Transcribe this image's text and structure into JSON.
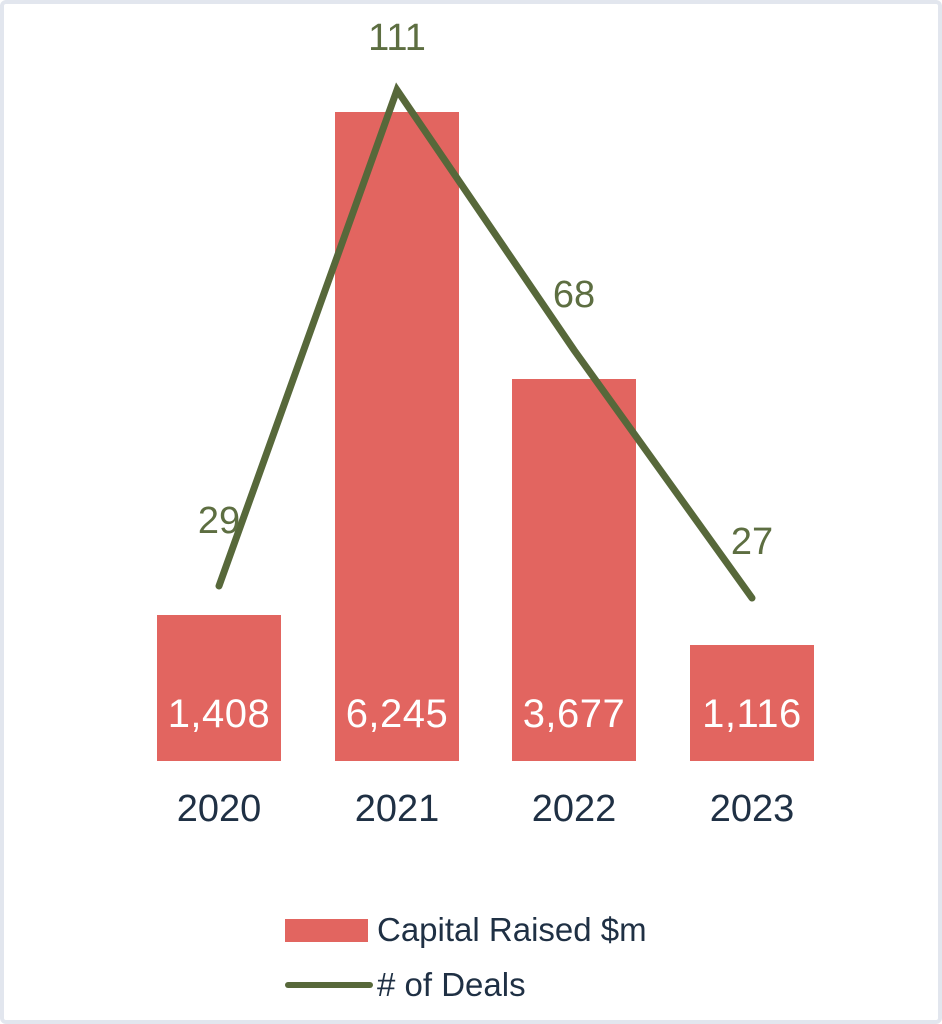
{
  "chart_data": {
    "type": "bar+line",
    "categories": [
      "2020",
      "2021",
      "2022",
      "2023"
    ],
    "series": [
      {
        "name": "Capital Raised $m",
        "type": "bar",
        "values": [
          1408,
          6245,
          3677,
          1116
        ],
        "labels": [
          "1,408",
          "6,245",
          "3,677",
          "1,116"
        ],
        "color": "#e26560"
      },
      {
        "name": "# of Deals",
        "type": "line",
        "values": [
          29,
          111,
          68,
          27
        ],
        "labels": [
          "29",
          "111",
          "68",
          "27"
        ],
        "color": "#57683a"
      }
    ],
    "title": "",
    "xlabel": "",
    "ylabel": "",
    "bar_axis_max": 6500,
    "line_axis_max": 120,
    "grid": false,
    "axes_hidden": true,
    "legend_position": "bottom-center"
  },
  "colors": {
    "background": "#ffffff",
    "frame_border": "#e2e6ee",
    "bar_fill": "#e26560",
    "line_stroke": "#57683a",
    "deal_label_text": "#5d6e41",
    "axis_text": "#1f3044",
    "bar_value_text": "#ffffff"
  }
}
